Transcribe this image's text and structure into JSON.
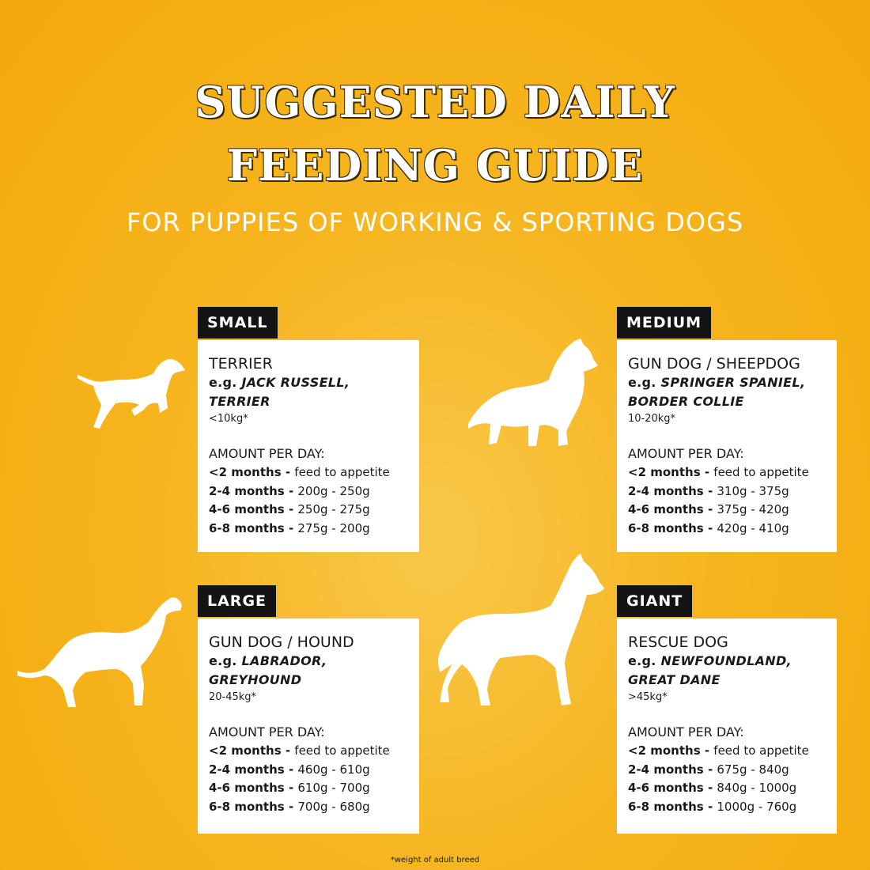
{
  "title": {
    "line1": "SUGGESTED DAILY",
    "line2": "FEEDING GUIDE",
    "subtitle": "FOR PUPPIES OF WORKING & SPORTING DOGS"
  },
  "sizes": [
    {
      "tag": "SMALL",
      "type": "TERRIER",
      "eg_prefix": "e.g. ",
      "eg_breeds": [
        "JACK RUSSELL,",
        "TERRIER"
      ],
      "weight": "<10kg*",
      "amount_label": "AMOUNT PER DAY:",
      "rows": [
        {
          "age": "<2 months",
          "sep": " - ",
          "amount": "feed to appetite"
        },
        {
          "age": "2-4 months",
          "sep": " - ",
          "amount": "200g - 250g"
        },
        {
          "age": "4-6 months",
          "sep": " - ",
          "amount": "250g - 275g"
        },
        {
          "age": "6-8 months",
          "sep": " - ",
          "amount": "275g - 200g"
        }
      ]
    },
    {
      "tag": "MEDIUM",
      "type": "GUN DOG / SHEEPDOG",
      "eg_prefix": "e.g. ",
      "eg_breeds": [
        "SPRINGER SPANIEL,",
        "BORDER COLLIE"
      ],
      "weight": "10-20kg*",
      "amount_label": "AMOUNT PER DAY:",
      "rows": [
        {
          "age": "<2 months",
          "sep": " - ",
          "amount": "feed to appetite"
        },
        {
          "age": "2-4 months",
          "sep": " - ",
          "amount": "310g - 375g"
        },
        {
          "age": "4-6 months",
          "sep": " - ",
          "amount": "375g - 420g"
        },
        {
          "age": "6-8 months",
          "sep": " - ",
          "amount": "420g - 410g"
        }
      ]
    },
    {
      "tag": "LARGE",
      "type": "GUN DOG / HOUND",
      "eg_prefix": "e.g. ",
      "eg_breeds": [
        "LABRADOR,",
        "GREYHOUND"
      ],
      "weight": "20-45kg*",
      "amount_label": "AMOUNT PER DAY:",
      "rows": [
        {
          "age": "<2 months",
          "sep": " - ",
          "amount": "feed to appetite"
        },
        {
          "age": "2-4 months",
          "sep": " - ",
          "amount": "460g - 610g"
        },
        {
          "age": "4-6 months",
          "sep": " - ",
          "amount": "610g - 700g"
        },
        {
          "age": "6-8 months",
          "sep": " - ",
          "amount": "700g - 680g"
        }
      ]
    },
    {
      "tag": "GIANT",
      "type": "RESCUE DOG",
      "eg_prefix": "e.g. ",
      "eg_breeds": [
        "NEWFOUNDLAND,",
        "GREAT DANE"
      ],
      "weight": ">45kg*",
      "amount_label": "AMOUNT PER DAY:",
      "rows": [
        {
          "age": "<2 months",
          "sep": " - ",
          "amount": "feed to appetite"
        },
        {
          "age": "2-4 months",
          "sep": " - ",
          "amount": "675g - 840g"
        },
        {
          "age": "4-6 months",
          "sep": " - ",
          "amount": "840g - 1000g"
        },
        {
          "age": "6-8 months",
          "sep": " - ",
          "amount": "1000g - 760g"
        }
      ]
    }
  ],
  "icons": [
    "small-dog-silhouette-icon",
    "medium-dog-silhouette-icon",
    "large-dog-silhouette-icon",
    "giant-dog-silhouette-icon"
  ],
  "footnote": "*weight of adult breed",
  "colors": {
    "background": "#f6b51f",
    "tag": "#141414",
    "card": "#ffffff",
    "text": "#1a1a1a"
  }
}
